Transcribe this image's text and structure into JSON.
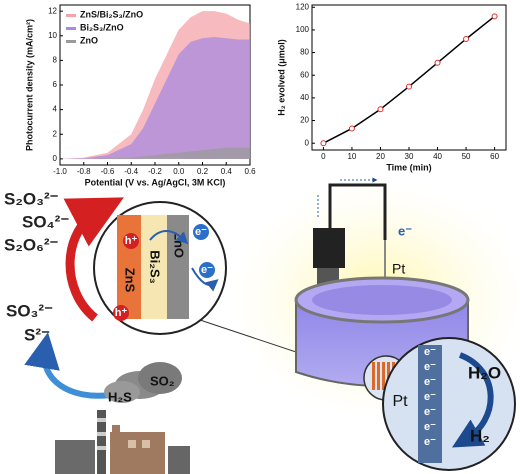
{
  "chart_data": [
    {
      "type": "area",
      "x_label": "Potential (V vs. Ag/AgCl, 3M KCl)",
      "y_label": "Photocurrent density (mA/cm²)",
      "x": [
        -1.0,
        -0.8,
        -0.6,
        -0.4,
        -0.3,
        -0.2,
        -0.1,
        0.0,
        0.1,
        0.2,
        0.3,
        0.4,
        0.5,
        0.6
      ],
      "series": [
        {
          "name": "ZnS/Bi₂S₃/ZnO",
          "color": "#f4a3a8",
          "values": [
            0,
            0.1,
            0.5,
            2,
            4,
            6.5,
            8.5,
            10.5,
            11.5,
            12,
            12,
            11.8,
            11.3,
            11
          ]
        },
        {
          "name": "Bi₂S₃/ZnO",
          "color": "#a98ae0",
          "values": [
            0,
            0.05,
            0.3,
            1.2,
            2.5,
            4.5,
            6.5,
            8.5,
            9.5,
            9.8,
            9.9,
            9.8,
            9.7,
            9.7
          ]
        },
        {
          "name": "ZnO",
          "color": "#9a9a9a",
          "values": [
            0,
            0,
            0.05,
            0.1,
            0.2,
            0.3,
            0.4,
            0.5,
            0.6,
            0.7,
            0.8,
            0.9,
            0.9,
            0.9
          ]
        }
      ],
      "xlim": [
        -1.0,
        0.6
      ],
      "xticks": [
        {
          "value": -1.0,
          "label": "-1.0"
        },
        -0.8,
        -0.6,
        -0.4,
        -0.2,
        {
          "value": 0.0,
          "label": "0.0"
        },
        0.2,
        0.4,
        0.6
      ],
      "ylim": [
        -0.5,
        12.5
      ],
      "yticks": [
        0,
        2,
        4,
        6,
        8,
        10,
        12
      ],
      "legend": "upper left"
    },
    {
      "type": "line",
      "x_label": "Time (min)",
      "y_label": "H₂ evolved (μmol)",
      "x": [
        0,
        10,
        20,
        30,
        40,
        50,
        60
      ],
      "series": [
        {
          "color": "#000000",
          "marker_color": "#e0302a",
          "values": [
            0,
            13,
            30,
            50,
            71,
            92,
            112
          ]
        }
      ],
      "xlim": [
        -4,
        64
      ],
      "xticks": [
        0,
        10,
        20,
        30,
        40,
        50,
        60
      ],
      "ylim": [
        -6,
        122
      ],
      "yticks": [
        0,
        20,
        40,
        60,
        80,
        100,
        120
      ]
    }
  ],
  "diagram": {
    "ions": [
      "S₂O₃²⁻",
      "SO₄²⁻",
      "S₂O₆²⁻",
      "SO₃²⁻",
      "S²⁻"
    ],
    "layers": [
      "ZnS",
      "Bi₂S₃",
      "ZnO"
    ],
    "holes": [
      "h⁺",
      "h⁺"
    ],
    "junction_electrons": [
      "e⁻",
      "e⁻"
    ],
    "gases": [
      "SO₂",
      "H₂S"
    ],
    "wire_electron": "e⁻",
    "pt_wire": "Pt",
    "pt_zoom": "Pt",
    "pt_electrons": [
      "e⁻",
      "e⁻",
      "e⁻",
      "e⁻",
      "e⁻",
      "e⁻",
      "e⁻"
    ],
    "reactant": "H₂O",
    "product": "H₂"
  }
}
